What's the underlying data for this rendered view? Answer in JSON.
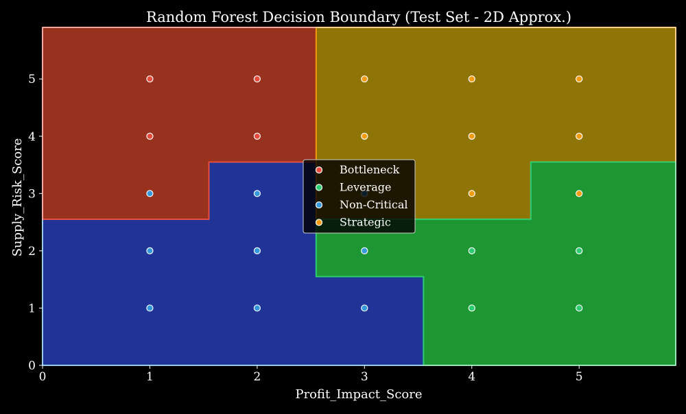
{
  "chart_data": {
    "type": "scatter",
    "title": "Random Forest Decision Boundary (Test Set - 2D Approx.)",
    "xlabel": "Profit_Impact_Score",
    "ylabel": "Supply_Risk_Score",
    "xlim": [
      0,
      5.9
    ],
    "ylim": [
      0,
      5.9
    ],
    "xticks": [
      0,
      1,
      2,
      3,
      4,
      5
    ],
    "yticks": [
      0,
      1,
      2,
      3,
      4,
      5
    ],
    "grid": false,
    "legend_position": "center",
    "colors": {
      "Bottleneck": "#e74c3c",
      "Leverage": "#2ecc71",
      "Non-Critical": "#3498db",
      "Strategic": "#f39c12"
    },
    "region_colors": {
      "Bottleneck": "#97321f",
      "Leverage": "#1e9634",
      "Non-Critical": "#1f3496",
      "Strategic": "#8f7408"
    },
    "regions": [
      {
        "class": "Non-Critical",
        "polygon": [
          [
            0,
            0
          ],
          [
            3.55,
            0
          ],
          [
            3.55,
            1.55
          ],
          [
            2.55,
            1.55
          ],
          [
            2.55,
            2.55
          ],
          [
            1.55,
            2.55
          ],
          [
            1.55,
            3.55
          ],
          [
            2.55,
            3.55
          ],
          [
            2.55,
            0
          ],
          [
            0,
            0
          ]
        ]
      },
      {
        "class": "Non-Critical",
        "polygon": [
          [
            0,
            0
          ],
          [
            3.55,
            0
          ],
          [
            3.55,
            1.55
          ],
          [
            2.55,
            1.55
          ],
          [
            2.55,
            3.55
          ],
          [
            1.55,
            3.55
          ],
          [
            1.55,
            2.55
          ],
          [
            0,
            2.55
          ]
        ]
      },
      {
        "class": "Bottleneck",
        "polygon": [
          [
            0,
            2.55
          ],
          [
            1.55,
            2.55
          ],
          [
            1.55,
            3.55
          ],
          [
            2.55,
            3.55
          ],
          [
            2.55,
            5.9
          ],
          [
            0,
            5.9
          ]
        ]
      },
      {
        "class": "Strategic",
        "polygon": [
          [
            2.55,
            2.55
          ],
          [
            4.55,
            2.55
          ],
          [
            4.55,
            3.55
          ],
          [
            5.9,
            3.55
          ],
          [
            5.9,
            5.9
          ],
          [
            2.55,
            5.9
          ]
        ]
      },
      {
        "class": "Leverage",
        "polygon": [
          [
            3.55,
            0
          ],
          [
            5.9,
            0
          ],
          [
            5.9,
            3.55
          ],
          [
            4.55,
            3.55
          ],
          [
            4.55,
            2.55
          ],
          [
            2.55,
            2.55
          ],
          [
            2.55,
            1.55
          ],
          [
            3.55,
            1.55
          ]
        ]
      }
    ],
    "series": [
      {
        "name": "Bottleneck",
        "points": [
          [
            1,
            5
          ],
          [
            2,
            5
          ],
          [
            1,
            4
          ],
          [
            2,
            4
          ]
        ]
      },
      {
        "name": "Leverage",
        "points": [
          [
            4,
            2
          ],
          [
            5,
            2
          ],
          [
            4,
            1
          ],
          [
            5,
            1
          ]
        ]
      },
      {
        "name": "Non-Critical",
        "points": [
          [
            1,
            3
          ],
          [
            2,
            3
          ],
          [
            1,
            2
          ],
          [
            2,
            2
          ],
          [
            3,
            2
          ],
          [
            1,
            1
          ],
          [
            2,
            1
          ],
          [
            3,
            1
          ],
          [
            3,
            3
          ]
        ]
      },
      {
        "name": "Strategic",
        "points": [
          [
            3,
            5
          ],
          [
            4,
            5
          ],
          [
            5,
            5
          ],
          [
            3,
            4
          ],
          [
            4,
            4
          ],
          [
            5,
            4
          ],
          [
            4,
            3
          ],
          [
            5,
            3
          ]
        ]
      }
    ]
  }
}
